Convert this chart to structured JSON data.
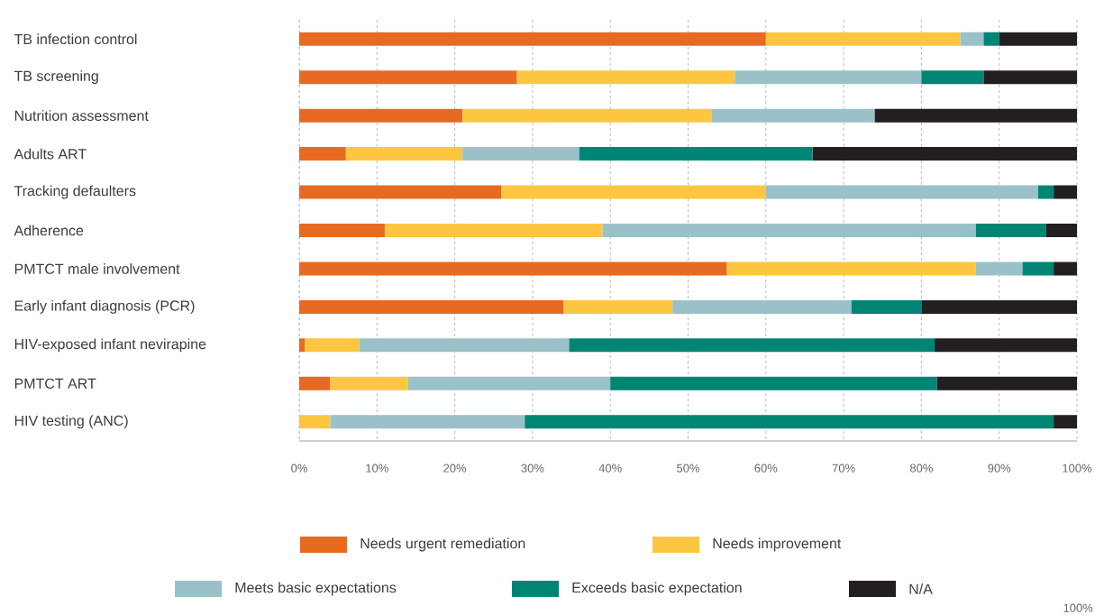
{
  "chart_data": {
    "type": "bar",
    "orientation": "horizontal",
    "stacked": true,
    "categories": [
      "TB infection control",
      "TB screening",
      "Nutrition assessment",
      "Adults ART",
      "Tracking defaulters",
      "Adherence",
      "PMTCT male involvement",
      "Early infant diagnosis (PCR)",
      "HIV-exposed infant nevirapine",
      "PMTCT ART",
      "HIV testing (ANC)"
    ],
    "series": [
      {
        "name": "Needs urgent remediation",
        "color": "#e76a22",
        "values": [
          60,
          28,
          21,
          6,
          26,
          11,
          55,
          34,
          0.7,
          4,
          0
        ]
      },
      {
        "name": "Needs improvement",
        "color": "#fdc640",
        "values": [
          25,
          28,
          32,
          15,
          34,
          28,
          32,
          14,
          7,
          10,
          4
        ]
      },
      {
        "name": "Meets basic expectations",
        "color": "#9ac1c7",
        "values": [
          3,
          24,
          21,
          15,
          35,
          48,
          6,
          23,
          27,
          26,
          25
        ]
      },
      {
        "name": "Exceeds basic expectation",
        "color": "#008575",
        "values": [
          2,
          8,
          0,
          30,
          2,
          9,
          4,
          9,
          47,
          42,
          68
        ]
      },
      {
        "name": "N/A",
        "color": "#231f20",
        "values": [
          10,
          12,
          26,
          34,
          3,
          4,
          3,
          20,
          18.3,
          18,
          3
        ]
      }
    ],
    "xlim": [
      0,
      100
    ],
    "xticks": [
      {
        "value": 0,
        "label": "0%"
      },
      {
        "value": 10,
        "label": "10%"
      },
      {
        "value": 20,
        "label": "20%"
      },
      {
        "value": 30,
        "label": "30%"
      },
      {
        "value": 40,
        "label": "40%"
      },
      {
        "value": 50,
        "label": "50%"
      },
      {
        "value": 60,
        "label": "60%"
      },
      {
        "value": 70,
        "label": "70%"
      },
      {
        "value": 80,
        "label": "80%"
      },
      {
        "value": 90,
        "label": "90%"
      },
      {
        "value": 100,
        "label": "100%"
      }
    ],
    "grid": "x",
    "legend": "bottom",
    "annotations": [
      "100%"
    ]
  }
}
